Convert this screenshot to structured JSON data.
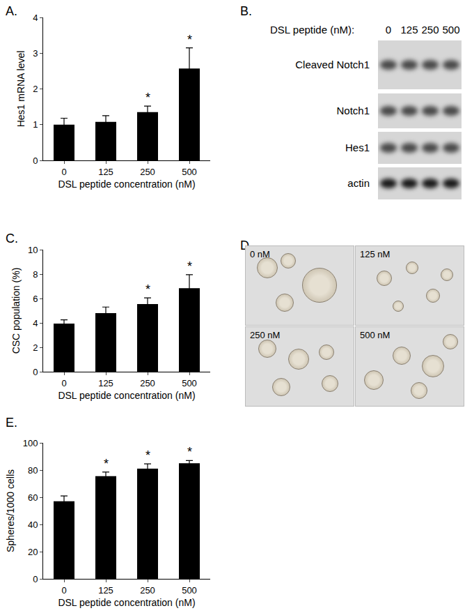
{
  "panels": [
    "A.",
    "B.",
    "C.",
    "D.",
    "E."
  ],
  "chart_data": [
    {
      "type": "bar",
      "y_label": "Hes1 mRNA level",
      "x_label": "DSL peptide concentration (nM)",
      "categories": [
        "0",
        "125",
        "250",
        "500"
      ],
      "values": [
        1.0,
        1.08,
        1.35,
        2.57
      ],
      "errors": [
        0.18,
        0.17,
        0.17,
        0.58
      ],
      "color": "#000000",
      "ylim": [
        0,
        4
      ],
      "yticks": [
        0,
        1,
        2,
        3,
        4
      ],
      "grid": false,
      "annotations": [
        {
          "category": "250",
          "text": "*"
        },
        {
          "category": "500",
          "text": "*"
        }
      ]
    },
    {
      "type": "bar",
      "y_label": "CSC population (%)",
      "x_label": "DSL peptide concentration (nM)",
      "categories": [
        "0",
        "125",
        "250",
        "500"
      ],
      "values": [
        3.95,
        4.8,
        5.55,
        6.85
      ],
      "errors": [
        0.3,
        0.5,
        0.5,
        1.1
      ],
      "color": "#000000",
      "ylim": [
        0,
        10
      ],
      "yticks": [
        0,
        2,
        4,
        6,
        8,
        10
      ],
      "grid": false,
      "annotations": [
        {
          "category": "250",
          "text": "*"
        },
        {
          "category": "500",
          "text": "*"
        }
      ]
    },
    {
      "type": "bar",
      "y_label": "Spheres/1000 cells",
      "x_label": "DSL peptide concentration (nM)",
      "categories": [
        "0",
        "125",
        "250",
        "500"
      ],
      "values": [
        57,
        75.5,
        81,
        85
      ],
      "errors": [
        4,
        3,
        3.5,
        2
      ],
      "color": "#000000",
      "ylim": [
        0,
        100
      ],
      "yticks": [
        0,
        20,
        40,
        60,
        80,
        100
      ],
      "grid": false,
      "annotations": [
        {
          "category": "125",
          "text": "*"
        },
        {
          "category": "250",
          "text": "*"
        },
        {
          "category": "500",
          "text": "*"
        }
      ]
    }
  ],
  "blot": {
    "header": "DSL peptide (nM):",
    "lanes": [
      "0",
      "125",
      "250",
      "500"
    ],
    "rows": [
      "Cleaved Notch1",
      "Notch1",
      "Hes1",
      "actin"
    ]
  },
  "micrographs": [
    "0 nM",
    "125 nM",
    "250 nM",
    "500 nM"
  ]
}
